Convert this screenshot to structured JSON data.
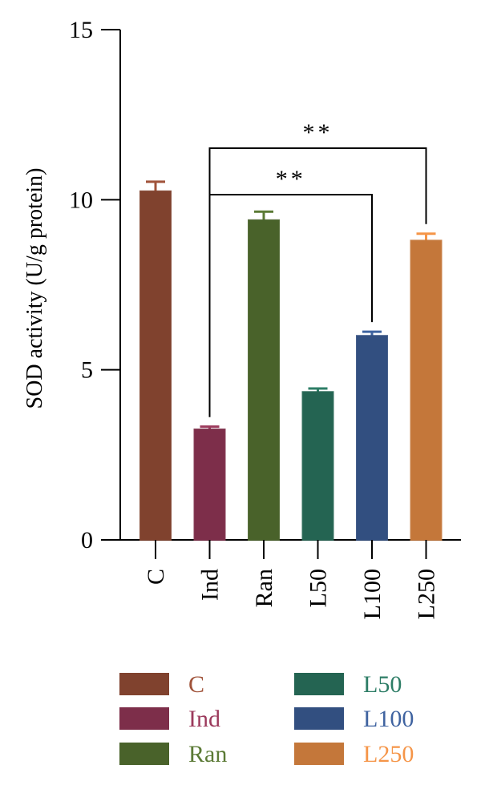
{
  "chart_data": {
    "type": "bar",
    "title": "",
    "xlabel": "",
    "ylabel": "SOD activity (U/g protein)",
    "ylim": [
      0,
      15
    ],
    "yticks": [
      "0",
      "5",
      "10",
      "15"
    ],
    "categories": [
      "C",
      "Ind",
      "Ran",
      "L50",
      "L100",
      "L250"
    ],
    "values": [
      10.25,
      3.25,
      9.4,
      4.35,
      6.0,
      8.8
    ],
    "errors": [
      0.28,
      0.08,
      0.25,
      0.1,
      0.12,
      0.2
    ],
    "colors": [
      "#a0533a",
      "#9c3a5c",
      "#5b7a35",
      "#2d7d66",
      "#3f63a0",
      "#f59548"
    ],
    "significance": [
      {
        "from": "Ind",
        "to": "L100",
        "label": "**"
      },
      {
        "from": "Ind",
        "to": "L250",
        "label": "**"
      }
    ],
    "legend": {
      "placement": "bottom",
      "items": [
        {
          "label": "C",
          "color": "#a0533a"
        },
        {
          "label": "Ind",
          "color": "#9c3a5c"
        },
        {
          "label": "Ran",
          "color": "#5b7a35"
        },
        {
          "label": "L50",
          "color": "#2d7d66"
        },
        {
          "label": "L100",
          "color": "#3f63a0"
        },
        {
          "label": "L250",
          "color": "#f59548"
        }
      ]
    },
    "grid": false
  }
}
